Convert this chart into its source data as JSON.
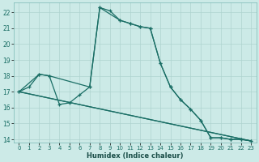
{
  "xlabel": "Humidex (Indice chaleur)",
  "bg_color": "#cceae7",
  "grid_color": "#aed4d0",
  "line_color": "#1a6e65",
  "xlim": [
    -0.5,
    23.5
  ],
  "ylim": [
    13.8,
    22.6
  ],
  "yticks": [
    14,
    15,
    16,
    17,
    18,
    19,
    20,
    21,
    22
  ],
  "xticks": [
    0,
    1,
    2,
    3,
    4,
    5,
    6,
    7,
    8,
    9,
    10,
    11,
    12,
    13,
    14,
    15,
    16,
    17,
    18,
    19,
    20,
    21,
    22,
    23
  ],
  "lines": [
    {
      "x": [
        0,
        1,
        2,
        3,
        4,
        5,
        6,
        7,
        8,
        9,
        10,
        11,
        12,
        13,
        14,
        15,
        16,
        17,
        18,
        19,
        20,
        21,
        22,
        23
      ],
      "y": [
        17.0,
        17.3,
        18.1,
        18.0,
        16.2,
        16.3,
        16.8,
        17.3,
        22.3,
        22.1,
        21.5,
        21.3,
        21.1,
        21.0,
        18.8,
        17.3,
        16.5,
        15.9,
        15.2,
        14.1,
        14.1,
        14.0,
        14.0,
        13.9
      ]
    },
    {
      "x": [
        0,
        2,
        3,
        7,
        8,
        10,
        11,
        12,
        13,
        14,
        15,
        16,
        17,
        18,
        19,
        20,
        21,
        22,
        23
      ],
      "y": [
        17.0,
        18.1,
        18.0,
        17.3,
        22.3,
        21.5,
        21.3,
        21.1,
        21.0,
        18.8,
        17.3,
        16.5,
        15.9,
        15.2,
        14.1,
        14.1,
        14.0,
        14.0,
        13.9
      ]
    },
    {
      "x": [
        0,
        23
      ],
      "y": [
        17.0,
        13.9
      ]
    },
    {
      "x": [
        0,
        23
      ],
      "y": [
        17.0,
        13.9
      ]
    }
  ]
}
